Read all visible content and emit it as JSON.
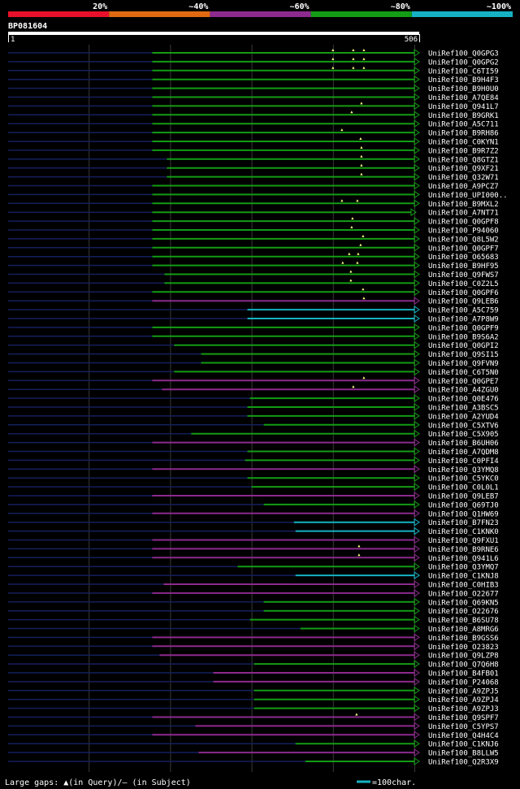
{
  "chart_data": {
    "type": "alignment_overview",
    "query_id": "BP081604",
    "query_length": 506,
    "axis_start": "1",
    "axis_end": "506",
    "identity_legend": [
      {
        "label": "20%",
        "color": "#e8102a"
      },
      {
        "label": "~40%",
        "color": "#e06a12"
      },
      {
        "label": "~60%",
        "color": "#8c2a8e"
      },
      {
        "label": "~80%",
        "color": "#139c14"
      },
      {
        "label": "~100%",
        "color": "#14b2c2"
      }
    ],
    "hits": [
      {
        "name": "UniRef100_Q0GPG3",
        "start": 178,
        "end": 500,
        "identity": "~80%",
        "insertions": [
          400,
          425,
          438
        ]
      },
      {
        "name": "UniRef100_Q0GPG2",
        "start": 178,
        "end": 500,
        "identity": "~80%",
        "insertions": [
          400,
          425,
          438
        ]
      },
      {
        "name": "UniRef100_C6TI59",
        "start": 178,
        "end": 500,
        "identity": "~80%",
        "insertions": [
          400,
          425,
          438
        ]
      },
      {
        "name": "UniRef100_B9H4F3",
        "start": 178,
        "end": 500,
        "identity": "~80%",
        "insertions": []
      },
      {
        "name": "UniRef100_B9H0U0",
        "start": 178,
        "end": 500,
        "identity": "~80%",
        "insertions": []
      },
      {
        "name": "UniRef100_A7QE84",
        "start": 178,
        "end": 500,
        "identity": "~80%",
        "insertions": []
      },
      {
        "name": "UniRef100_Q941L7",
        "start": 178,
        "end": 500,
        "identity": "~80%",
        "insertions": [
          435
        ]
      },
      {
        "name": "UniRef100_B9GRK1",
        "start": 178,
        "end": 500,
        "identity": "~80%",
        "insertions": [
          423
        ]
      },
      {
        "name": "UniRef100_A5C711",
        "start": 178,
        "end": 500,
        "identity": "~80%",
        "insertions": []
      },
      {
        "name": "UniRef100_B9RH86",
        "start": 178,
        "end": 500,
        "identity": "~80%",
        "insertions": [
          411
        ]
      },
      {
        "name": "UniRef100_C0KYN1",
        "start": 178,
        "end": 500,
        "identity": "~80%",
        "insertions": [
          434
        ]
      },
      {
        "name": "UniRef100_B9R7Z2",
        "start": 178,
        "end": 500,
        "identity": "~80%",
        "insertions": [
          435
        ]
      },
      {
        "name": "UniRef100_Q8GTZ1",
        "start": 196,
        "end": 500,
        "identity": "~80%",
        "insertions": [
          435
        ]
      },
      {
        "name": "UniRef100_Q9XF21",
        "start": 196,
        "end": 500,
        "identity": "~80%",
        "insertions": [
          435
        ]
      },
      {
        "name": "UniRef100_Q32W71",
        "start": 196,
        "end": 500,
        "identity": "~80%",
        "insertions": [
          435
        ]
      },
      {
        "name": "UniRef100_A9PCZ7",
        "start": 178,
        "end": 500,
        "identity": "~80%",
        "insertions": []
      },
      {
        "name": "UniRef100_UPI000..",
        "start": 178,
        "end": 500,
        "identity": "~80%",
        "insertions": []
      },
      {
        "name": "UniRef100_B9MXL2",
        "start": 178,
        "end": 500,
        "identity": "~80%",
        "insertions": [
          411,
          430
        ]
      },
      {
        "name": "UniRef100_A7NT71",
        "start": 178,
        "end": 496,
        "identity": "~80%",
        "insertions": []
      },
      {
        "name": "UniRef100_Q0GPF8",
        "start": 178,
        "end": 500,
        "identity": "~80%",
        "insertions": [
          424
        ]
      },
      {
        "name": "UniRef100_P94060",
        "start": 178,
        "end": 500,
        "identity": "~80%",
        "insertions": [
          423
        ]
      },
      {
        "name": "UniRef100_Q8L5W2",
        "start": 178,
        "end": 500,
        "identity": "~80%",
        "insertions": [
          437
        ]
      },
      {
        "name": "UniRef100_Q0GPF7",
        "start": 178,
        "end": 500,
        "identity": "~80%",
        "insertions": [
          434
        ]
      },
      {
        "name": "UniRef100_O65683",
        "start": 178,
        "end": 500,
        "identity": "~80%",
        "insertions": [
          420,
          431
        ]
      },
      {
        "name": "UniRef100_B9HF95",
        "start": 178,
        "end": 500,
        "identity": "~80%",
        "insertions": [
          412,
          430
        ]
      },
      {
        "name": "UniRef100_Q9FWS7",
        "start": 193,
        "end": 500,
        "identity": "~80%",
        "insertions": [
          422
        ]
      },
      {
        "name": "UniRef100_C0Z2L5",
        "start": 193,
        "end": 500,
        "identity": "~80%",
        "insertions": [
          422
        ]
      },
      {
        "name": "UniRef100_Q0GPF6",
        "start": 178,
        "end": 500,
        "identity": "~80%",
        "insertions": [
          437
        ]
      },
      {
        "name": "UniRef100_Q9LEB6",
        "start": 178,
        "end": 500,
        "identity": "~60%",
        "insertions": [
          438
        ]
      },
      {
        "name": "UniRef100_A5C759",
        "start": 295,
        "end": 500,
        "identity": "~100%",
        "insertions": []
      },
      {
        "name": "UniRef100_A7P8W9",
        "start": 295,
        "end": 500,
        "identity": "~100%",
        "insertions": []
      },
      {
        "name": "UniRef100_Q0GPF9",
        "start": 178,
        "end": 500,
        "identity": "~80%",
        "insertions": []
      },
      {
        "name": "UniRef100_B9S6A2",
        "start": 178,
        "end": 500,
        "identity": "~80%",
        "insertions": []
      },
      {
        "name": "UniRef100_Q0GPI2",
        "start": 205,
        "end": 500,
        "identity": "~80%",
        "insertions": []
      },
      {
        "name": "UniRef100_Q9SI15",
        "start": 238,
        "end": 500,
        "identity": "~80%",
        "insertions": []
      },
      {
        "name": "UniRef100_Q9FVN9",
        "start": 238,
        "end": 500,
        "identity": "~80%",
        "insertions": []
      },
      {
        "name": "UniRef100_C6T5N0",
        "start": 205,
        "end": 500,
        "identity": "~80%",
        "insertions": []
      },
      {
        "name": "UniRef100_Q0GPE7",
        "start": 178,
        "end": 500,
        "identity": "~60%",
        "insertions": [
          438
        ]
      },
      {
        "name": "UniRef100_A4ZGU0",
        "start": 190,
        "end": 500,
        "identity": "~60%",
        "insertions": [
          425
        ]
      },
      {
        "name": "UniRef100_Q0E476",
        "start": 298,
        "end": 500,
        "identity": "~80%",
        "insertions": []
      },
      {
        "name": "UniRef100_A3BSC5",
        "start": 295,
        "end": 500,
        "identity": "~80%",
        "insertions": []
      },
      {
        "name": "UniRef100_A2YUD4",
        "start": 295,
        "end": 500,
        "identity": "~80%",
        "insertions": []
      },
      {
        "name": "UniRef100_C5XTV6",
        "start": 315,
        "end": 500,
        "identity": "~80%",
        "insertions": []
      },
      {
        "name": "UniRef100_C5X905",
        "start": 226,
        "end": 500,
        "identity": "~80%",
        "insertions": []
      },
      {
        "name": "UniRef100_B6UH06",
        "start": 178,
        "end": 500,
        "identity": "~60%",
        "insertions": []
      },
      {
        "name": "UniRef100_A7QDM8",
        "start": 295,
        "end": 500,
        "identity": "~80%",
        "insertions": []
      },
      {
        "name": "UniRef100_C0PFI4",
        "start": 292,
        "end": 500,
        "identity": "~80%",
        "insertions": []
      },
      {
        "name": "UniRef100_Q3YMQ8",
        "start": 178,
        "end": 500,
        "identity": "~60%",
        "insertions": []
      },
      {
        "name": "UniRef100_C5YKC0",
        "start": 295,
        "end": 500,
        "identity": "~80%",
        "insertions": []
      },
      {
        "name": "UniRef100_C0L0L1",
        "start": 300,
        "end": 500,
        "identity": "~80%",
        "insertions": []
      },
      {
        "name": "UniRef100_Q9LEB7",
        "start": 178,
        "end": 500,
        "identity": "~60%",
        "insertions": []
      },
      {
        "name": "UniRef100_Q69TJ0",
        "start": 315,
        "end": 500,
        "identity": "~80%",
        "insertions": []
      },
      {
        "name": "UniRef100_Q1HW69",
        "start": 178,
        "end": 500,
        "identity": "~60%",
        "insertions": []
      },
      {
        "name": "UniRef100_B7FN23",
        "start": 352,
        "end": 500,
        "identity": "~100%",
        "insertions": []
      },
      {
        "name": "UniRef100_C1KNK0",
        "start": 354,
        "end": 500,
        "identity": "~100%",
        "insertions": []
      },
      {
        "name": "UniRef100_Q9FXU1",
        "start": 178,
        "end": 500,
        "identity": "~60%",
        "insertions": []
      },
      {
        "name": "UniRef100_B9RNE6",
        "start": 178,
        "end": 500,
        "identity": "~60%",
        "insertions": [
          432
        ]
      },
      {
        "name": "UniRef100_Q941L6",
        "start": 178,
        "end": 500,
        "identity": "~60%",
        "insertions": [
          432
        ]
      },
      {
        "name": "UniRef100_Q3YMQ7",
        "start": 283,
        "end": 500,
        "identity": "~80%",
        "insertions": []
      },
      {
        "name": "UniRef100_C1KNJ8",
        "start": 354,
        "end": 500,
        "identity": "~100%",
        "insertions": []
      },
      {
        "name": "UniRef100_C0HIB3",
        "start": 192,
        "end": 500,
        "identity": "~60%",
        "insertions": []
      },
      {
        "name": "UniRef100_O22677",
        "start": 178,
        "end": 500,
        "identity": "~60%",
        "insertions": []
      },
      {
        "name": "UniRef100_Q69KN5",
        "start": 315,
        "end": 500,
        "identity": "~80%",
        "insertions": []
      },
      {
        "name": "UniRef100_O22676",
        "start": 315,
        "end": 500,
        "identity": "~80%",
        "insertions": []
      },
      {
        "name": "UniRef100_B6SU78",
        "start": 298,
        "end": 500,
        "identity": "~80%",
        "insertions": []
      },
      {
        "name": "UniRef100_A8MRG6",
        "start": 360,
        "end": 500,
        "identity": "~80%",
        "insertions": []
      },
      {
        "name": "UniRef100_B9GSS6",
        "start": 178,
        "end": 500,
        "identity": "~60%",
        "insertions": []
      },
      {
        "name": "UniRef100_O23823",
        "start": 178,
        "end": 500,
        "identity": "~60%",
        "insertions": []
      },
      {
        "name": "UniRef100_Q9LZP8",
        "start": 187,
        "end": 500,
        "identity": "~60%",
        "insertions": []
      },
      {
        "name": "UniRef100_Q7Q6H8",
        "start": 303,
        "end": 500,
        "identity": "~80%",
        "insertions": []
      },
      {
        "name": "UniRef100_B4FB01",
        "start": 253,
        "end": 500,
        "identity": "~60%",
        "insertions": []
      },
      {
        "name": "UniRef100_P24068",
        "start": 253,
        "end": 500,
        "identity": "~60%",
        "insertions": []
      },
      {
        "name": "UniRef100_A9ZPJ5",
        "start": 303,
        "end": 500,
        "identity": "~80%",
        "insertions": []
      },
      {
        "name": "UniRef100_A9ZPJ4",
        "start": 303,
        "end": 500,
        "identity": "~80%",
        "insertions": []
      },
      {
        "name": "UniRef100_A9ZPJ3",
        "start": 303,
        "end": 500,
        "identity": "~80%",
        "insertions": []
      },
      {
        "name": "UniRef100_Q9SPF7",
        "start": 178,
        "end": 500,
        "identity": "~60%",
        "insertions": [
          429
        ]
      },
      {
        "name": "UniRef100_C5YPS7",
        "start": 231,
        "end": 500,
        "identity": "~60%",
        "insertions": []
      },
      {
        "name": "UniRef100_Q4H4C4",
        "start": 178,
        "end": 500,
        "identity": "~60%",
        "insertions": []
      },
      {
        "name": "UniRef100_C1KNJ6",
        "start": 354,
        "end": 500,
        "identity": "~80%",
        "insertions": []
      },
      {
        "name": "UniRef100_B8LLW5",
        "start": 235,
        "end": 500,
        "identity": "~60%",
        "insertions": []
      },
      {
        "name": "UniRef100_Q2R3X9",
        "start": 366,
        "end": 500,
        "identity": "~80%",
        "insertions": []
      }
    ],
    "footer_legend": "Large gaps: ▲(in Query)/– (in Subject)",
    "scale_legend": "=100char."
  }
}
